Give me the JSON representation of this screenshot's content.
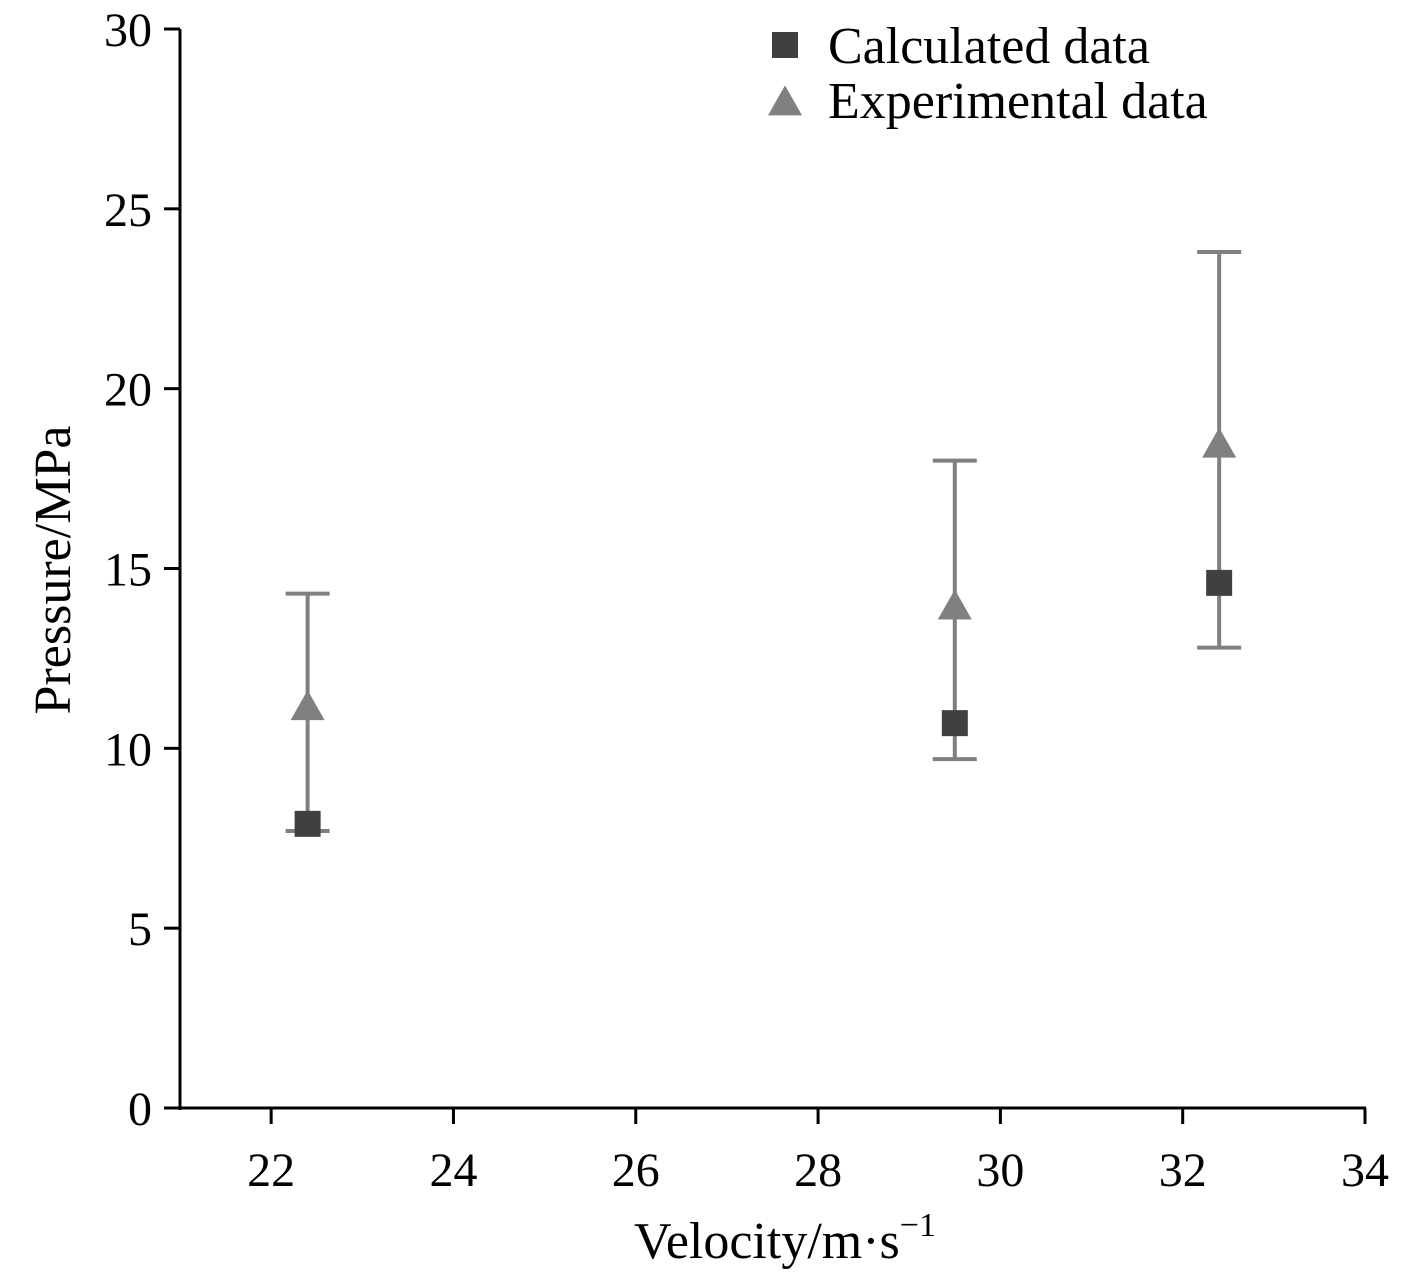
{
  "chart_data": {
    "type": "scatter",
    "title": "",
    "xlabel": "Velocity/m·s",
    "xlabel_sup": "−1",
    "ylabel": "Pressure/MPa",
    "xlim": [
      21,
      34
    ],
    "ylim": [
      0,
      30
    ],
    "xticks": [
      "22",
      "24",
      "26",
      "28",
      "30",
      "32",
      "34"
    ],
    "yticks": [
      "0",
      "5",
      "10",
      "15",
      "20",
      "25",
      "30"
    ],
    "grid": false,
    "legend_position": "top-right",
    "series": [
      {
        "name": "Calculated data",
        "marker": "square",
        "color": "#404040",
        "points": [
          {
            "x": 22.4,
            "y": 7.9
          },
          {
            "x": 29.5,
            "y": 10.7
          },
          {
            "x": 32.4,
            "y": 14.6
          }
        ]
      },
      {
        "name": "Experimental data",
        "marker": "triangle",
        "color": "#808080",
        "points": [
          {
            "x": 22.4,
            "y": 11.1,
            "err_low": 7.7,
            "err_high": 14.3
          },
          {
            "x": 29.5,
            "y": 13.9,
            "err_low": 9.7,
            "err_high": 18.0
          },
          {
            "x": 32.4,
            "y": 18.4,
            "err_low": 12.8,
            "err_high": 23.8
          }
        ]
      }
    ]
  }
}
